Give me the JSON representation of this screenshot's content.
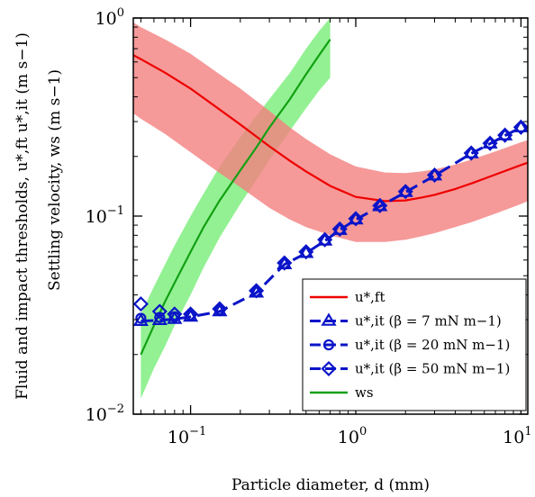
{
  "chart_data": {
    "type": "line",
    "title": "",
    "xlabel": "Particle diameter, d (mm)",
    "ylabel_outer": "Fluid and impact thresholds, u*,ft u*,it (m s−1)",
    "ylabel_inner": "Settling velocity, ws (m s−1)",
    "x_scale": "log",
    "y_scale": "log",
    "xlim": [
      0.045,
      11
    ],
    "ylim": [
      0.01,
      1
    ],
    "x_ticks": [
      {
        "value": 0.1,
        "label": "10",
        "exp": "−1"
      },
      {
        "value": 1,
        "label": "10",
        "exp": "0"
      },
      {
        "value": 10,
        "label": "10",
        "exp": "1"
      }
    ],
    "y_ticks": [
      {
        "value": 0.01,
        "label": "10",
        "exp": "−2"
      },
      {
        "value": 0.1,
        "label": "10",
        "exp": "−1"
      },
      {
        "value": 1,
        "label": "10",
        "exp": "0"
      }
    ],
    "grid": false,
    "legend_position": "bottom-right",
    "series": [
      {
        "name": "u*,ft",
        "color": "#ee0000",
        "band_color": "#f47f7f",
        "style": "solid",
        "x": [
          0.045,
          0.05,
          0.07,
          0.1,
          0.15,
          0.2,
          0.3,
          0.4,
          0.5,
          0.7,
          1.0,
          1.5,
          2.0,
          2.5,
          3.0,
          4.0,
          5.0,
          7.0,
          10.0,
          11.0
        ],
        "values": [
          0.65,
          0.62,
          0.53,
          0.44,
          0.345,
          0.29,
          0.225,
          0.19,
          0.168,
          0.142,
          0.125,
          0.119,
          0.12,
          0.124,
          0.128,
          0.137,
          0.146,
          0.162,
          0.181,
          0.186
        ],
        "band_lower": [
          0.33,
          0.31,
          0.26,
          0.21,
          0.165,
          0.14,
          0.11,
          0.096,
          0.088,
          0.08,
          0.074,
          0.074,
          0.076,
          0.079,
          0.082,
          0.088,
          0.093,
          0.103,
          0.115,
          0.119
        ],
        "band_upper": [
          0.95,
          0.9,
          0.78,
          0.66,
          0.52,
          0.44,
          0.34,
          0.28,
          0.245,
          0.205,
          0.178,
          0.166,
          0.165,
          0.168,
          0.172,
          0.182,
          0.193,
          0.212,
          0.236,
          0.242
        ]
      },
      {
        "name": "u*,it (β = 7 mN m−1)",
        "color": "#0a14c8",
        "marker": "triangle",
        "style": "dashed",
        "x": [
          0.05,
          0.065,
          0.08,
          0.1,
          0.15,
          0.25,
          0.37,
          0.5,
          0.65,
          0.8,
          1.0,
          1.4,
          2.0,
          3.0,
          5.0,
          6.5,
          8.0,
          10.0
        ],
        "values": [
          0.0295,
          0.0298,
          0.0302,
          0.031,
          0.033,
          0.041,
          0.057,
          0.065,
          0.075,
          0.085,
          0.096,
          0.112,
          0.132,
          0.16,
          0.207,
          0.232,
          0.255,
          0.28
        ]
      },
      {
        "name": "u*,it (β = 20 mN m−1)",
        "color": "#0a14c8",
        "marker": "circle",
        "style": "dashed",
        "x": [
          0.05,
          0.065,
          0.08,
          0.1,
          0.15,
          0.25,
          0.37,
          0.5,
          0.65,
          0.8,
          1.0,
          1.4,
          2.0,
          3.0,
          5.0,
          6.5,
          8.0,
          10.0
        ],
        "values": [
          0.0305,
          0.0308,
          0.031,
          0.0315,
          0.0335,
          0.0415,
          0.0575,
          0.0655,
          0.0755,
          0.0855,
          0.0965,
          0.1125,
          0.1325,
          0.1605,
          0.2075,
          0.2325,
          0.2555,
          0.2805
        ]
      },
      {
        "name": "u*,it (β = 50 mN m−1)",
        "color": "#0a14c8",
        "marker": "diamond",
        "style": "dashed",
        "x": [
          0.05,
          0.065,
          0.08,
          0.1,
          0.15,
          0.25,
          0.37,
          0.5,
          0.65,
          0.8,
          1.0,
          1.4,
          2.0,
          3.0,
          5.0,
          6.5,
          8.0,
          10.0
        ],
        "values": [
          0.036,
          0.033,
          0.032,
          0.032,
          0.034,
          0.042,
          0.058,
          0.066,
          0.076,
          0.086,
          0.097,
          0.113,
          0.133,
          0.161,
          0.208,
          0.233,
          0.256,
          0.281
        ]
      },
      {
        "name": "ws",
        "color": "#13a013",
        "band_color": "#6fec6f",
        "style": "solid",
        "x": [
          0.05,
          0.06,
          0.07,
          0.08,
          0.1,
          0.12,
          0.15,
          0.2,
          0.25,
          0.3,
          0.4,
          0.5,
          0.6,
          0.7
        ],
        "values": [
          0.02,
          0.028,
          0.037,
          0.046,
          0.066,
          0.088,
          0.12,
          0.17,
          0.222,
          0.28,
          0.39,
          0.52,
          0.65,
          0.78
        ],
        "band_lower": [
          0.012,
          0.017,
          0.022,
          0.028,
          0.04,
          0.055,
          0.078,
          0.115,
          0.152,
          0.192,
          0.27,
          0.35,
          0.43,
          0.5
        ],
        "band_upper": [
          0.032,
          0.044,
          0.057,
          0.071,
          0.1,
          0.13,
          0.178,
          0.25,
          0.32,
          0.39,
          0.53,
          0.7,
          0.86,
          1.0
        ]
      }
    ]
  }
}
